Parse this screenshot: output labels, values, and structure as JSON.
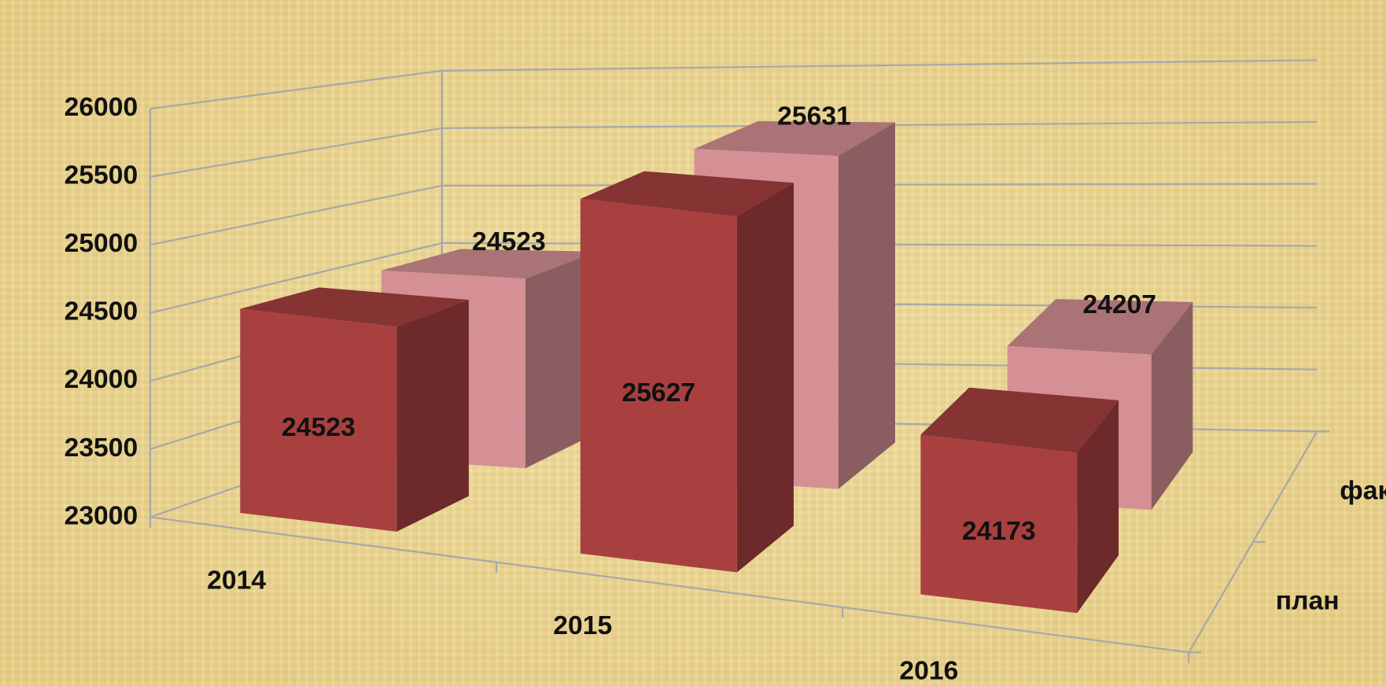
{
  "chart_data": {
    "type": "bar3d",
    "categories": [
      "2014",
      "2015",
      "2016"
    ],
    "series": [
      {
        "name": "план",
        "color": "#a84040",
        "values": [
          24523,
          25627,
          24173
        ]
      },
      {
        "name": "факт",
        "color": "#d49094",
        "values": [
          24523,
          25631,
          24207
        ]
      }
    ],
    "ylim": [
      23000,
      26000
    ],
    "yticks": [
      23000,
      23500,
      24000,
      24500,
      25000,
      25500,
      26000
    ],
    "grid": true
  }
}
